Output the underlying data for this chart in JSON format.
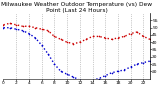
{
  "title": "Milwaukee Weather Outdoor Temperature (vs) Dew Point (Last 24 Hours)",
  "temp_color": "#cc0000",
  "dew_color": "#0000cc",
  "background": "#ffffff",
  "ylim": [
    15,
    60
  ],
  "yticks": [
    20,
    25,
    30,
    35,
    40,
    45,
    50,
    55
  ],
  "x": [
    0,
    1,
    2,
    3,
    4,
    5,
    6,
    7,
    8,
    9,
    10,
    11,
    12,
    13,
    14,
    15,
    16,
    17,
    18,
    19,
    20,
    21,
    22,
    23
  ],
  "temp": [
    52,
    53,
    52,
    51,
    51,
    50,
    49,
    48,
    44,
    42,
    40,
    39,
    40,
    42,
    44,
    44,
    43,
    42,
    43,
    44,
    46,
    47,
    44,
    42
  ],
  "dew": [
    50,
    50,
    49,
    48,
    46,
    43,
    38,
    32,
    25,
    20,
    18,
    16,
    14,
    13,
    14,
    15,
    17,
    19,
    20,
    21,
    23,
    25,
    26,
    27
  ],
  "title_fontsize": 4.2,
  "tick_fontsize": 3.2,
  "grid_color": "#999999",
  "vline_positions": [
    2,
    4,
    6,
    8,
    10,
    12,
    14,
    16,
    18,
    20,
    22
  ],
  "xtick_positions": [
    0,
    2,
    4,
    6,
    8,
    10,
    12,
    14,
    16,
    18,
    20,
    22
  ],
  "xtick_labels": [
    "0",
    "2",
    "4",
    "6",
    "8",
    "10",
    "12",
    "14",
    "16",
    "18",
    "20",
    "22"
  ]
}
